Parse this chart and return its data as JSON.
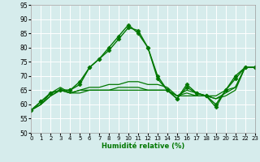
{
  "xlabel": "Humidité relative (%)",
  "bg_color": "#d6ecec",
  "grid_color": "#ffffff",
  "line_color": "#007700",
  "ylim": [
    50,
    95
  ],
  "xlim": [
    0,
    23
  ],
  "yticks": [
    50,
    55,
    60,
    65,
    70,
    75,
    80,
    85,
    90,
    95
  ],
  "xticks": [
    0,
    1,
    2,
    3,
    4,
    5,
    6,
    7,
    8,
    9,
    10,
    11,
    12,
    13,
    14,
    15,
    16,
    17,
    18,
    19,
    20,
    21,
    22,
    23
  ],
  "series": [
    {
      "x": [
        0,
        1,
        2,
        3,
        4,
        5,
        6,
        7,
        8,
        9,
        10,
        11,
        12,
        13,
        14,
        15,
        16,
        17,
        18,
        19,
        20,
        21,
        22,
        23
      ],
      "y": [
        58,
        61,
        64,
        65,
        65,
        68,
        73,
        76,
        80,
        84,
        88,
        85,
        80,
        70,
        65,
        62,
        67,
        64,
        63,
        60,
        65,
        70,
        73,
        73
      ],
      "marker": "D",
      "markersize": 2.5,
      "linewidth": 1.0
    },
    {
      "x": [
        0,
        1,
        2,
        3,
        4,
        5,
        6,
        7,
        8,
        9,
        10,
        11,
        12,
        13,
        14,
        15,
        16,
        17,
        18,
        19,
        20,
        21,
        22,
        23
      ],
      "y": [
        58,
        61,
        64,
        65,
        65,
        67,
        73,
        76,
        79,
        83,
        87,
        86,
        80,
        69,
        65,
        62,
        66,
        64,
        63,
        59,
        65,
        69,
        73,
        73
      ],
      "marker": "D",
      "markersize": 2.5,
      "linewidth": 1.0
    },
    {
      "x": [
        0,
        1,
        2,
        3,
        4,
        5,
        6,
        7,
        8,
        9,
        10,
        11,
        12,
        13,
        14,
        15,
        16,
        17,
        18,
        19,
        20,
        21,
        22,
        23
      ],
      "y": [
        58,
        60,
        63,
        65,
        64,
        64,
        65,
        65,
        65,
        65,
        65,
        65,
        65,
        65,
        65,
        63,
        63,
        63,
        63,
        62,
        63,
        65,
        73,
        73
      ],
      "marker": null,
      "markersize": 0,
      "linewidth": 0.9
    },
    {
      "x": [
        0,
        1,
        2,
        3,
        4,
        5,
        6,
        7,
        8,
        9,
        10,
        11,
        12,
        13,
        14,
        15,
        16,
        17,
        18,
        19,
        20,
        21,
        22,
        23
      ],
      "y": [
        58,
        60,
        63,
        65,
        64,
        65,
        65,
        65,
        65,
        66,
        66,
        66,
        65,
        65,
        65,
        63,
        64,
        63,
        63,
        62,
        64,
        66,
        73,
        73
      ],
      "marker": null,
      "markersize": 0,
      "linewidth": 0.9
    },
    {
      "x": [
        0,
        1,
        2,
        3,
        4,
        5,
        6,
        7,
        8,
        9,
        10,
        11,
        12,
        13,
        14,
        15,
        16,
        17,
        18,
        19,
        20,
        21,
        22,
        23
      ],
      "y": [
        58,
        60,
        64,
        66,
        64,
        65,
        66,
        66,
        67,
        67,
        68,
        68,
        67,
        67,
        66,
        63,
        65,
        64,
        63,
        63,
        65,
        66,
        73,
        73
      ],
      "marker": null,
      "markersize": 0,
      "linewidth": 0.9
    }
  ]
}
